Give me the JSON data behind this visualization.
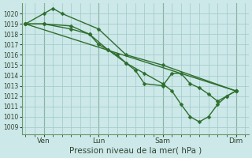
{
  "bg_color": "#cce8e8",
  "grid_color": "#a0c8c8",
  "line_color": "#2d6e2d",
  "ylabel_ticks": [
    1009,
    1010,
    1011,
    1012,
    1013,
    1014,
    1015,
    1016,
    1017,
    1018,
    1019,
    1020
  ],
  "ylim": [
    1008.3,
    1021.0
  ],
  "xlim": [
    -0.2,
    12.2
  ],
  "xlabel": "Pression niveau de la mer( hPa )",
  "xtick_labels": [
    "Ven",
    "Lun",
    "Sam",
    "Dim"
  ],
  "xtick_positions": [
    1.0,
    4.0,
    7.5,
    11.5
  ],
  "vlines_x": [
    1.0,
    4.0,
    7.5,
    11.5
  ],
  "series": [
    {
      "x": [
        0.0,
        1.0,
        1.5,
        2.0,
        4.0,
        5.5,
        7.5,
        11.5
      ],
      "y": [
        1019,
        1020,
        1020.5,
        1020,
        1018.5,
        1016,
        1015,
        1012.5
      ]
    },
    {
      "x": [
        0.0,
        1.0,
        2.5,
        3.5,
        4.0,
        4.5,
        5.0,
        5.5,
        6.0,
        6.5,
        7.5,
        8.0,
        8.5,
        9.0,
        9.5,
        10.0,
        10.5,
        11.0,
        11.5
      ],
      "y": [
        1019,
        1019,
        1018.5,
        1018,
        1017,
        1016.5,
        1016,
        1015.2,
        1014.5,
        1013.2,
        1013.0,
        1014.2,
        1014.2,
        1013.2,
        1012.8,
        1012.2,
        1011.5,
        1012.0,
        1012.5
      ]
    },
    {
      "x": [
        0.0,
        1.0,
        2.5,
        3.5,
        4.5,
        5.5,
        6.5,
        7.5,
        8.0,
        8.5,
        9.0,
        9.5,
        10.0,
        10.5,
        11.0,
        11.5
      ],
      "y": [
        1019,
        1019,
        1018.8,
        1018,
        1016.5,
        1015.2,
        1014.2,
        1013.2,
        1012.5,
        1011.2,
        1010.0,
        1009.5,
        1010.0,
        1011.2,
        1012.0,
        1012.5
      ]
    },
    {
      "x": [
        0.0,
        11.5
      ],
      "y": [
        1019.0,
        1012.5
      ]
    }
  ],
  "marker": "D",
  "markersize": 2.5,
  "linewidth": 1.0
}
